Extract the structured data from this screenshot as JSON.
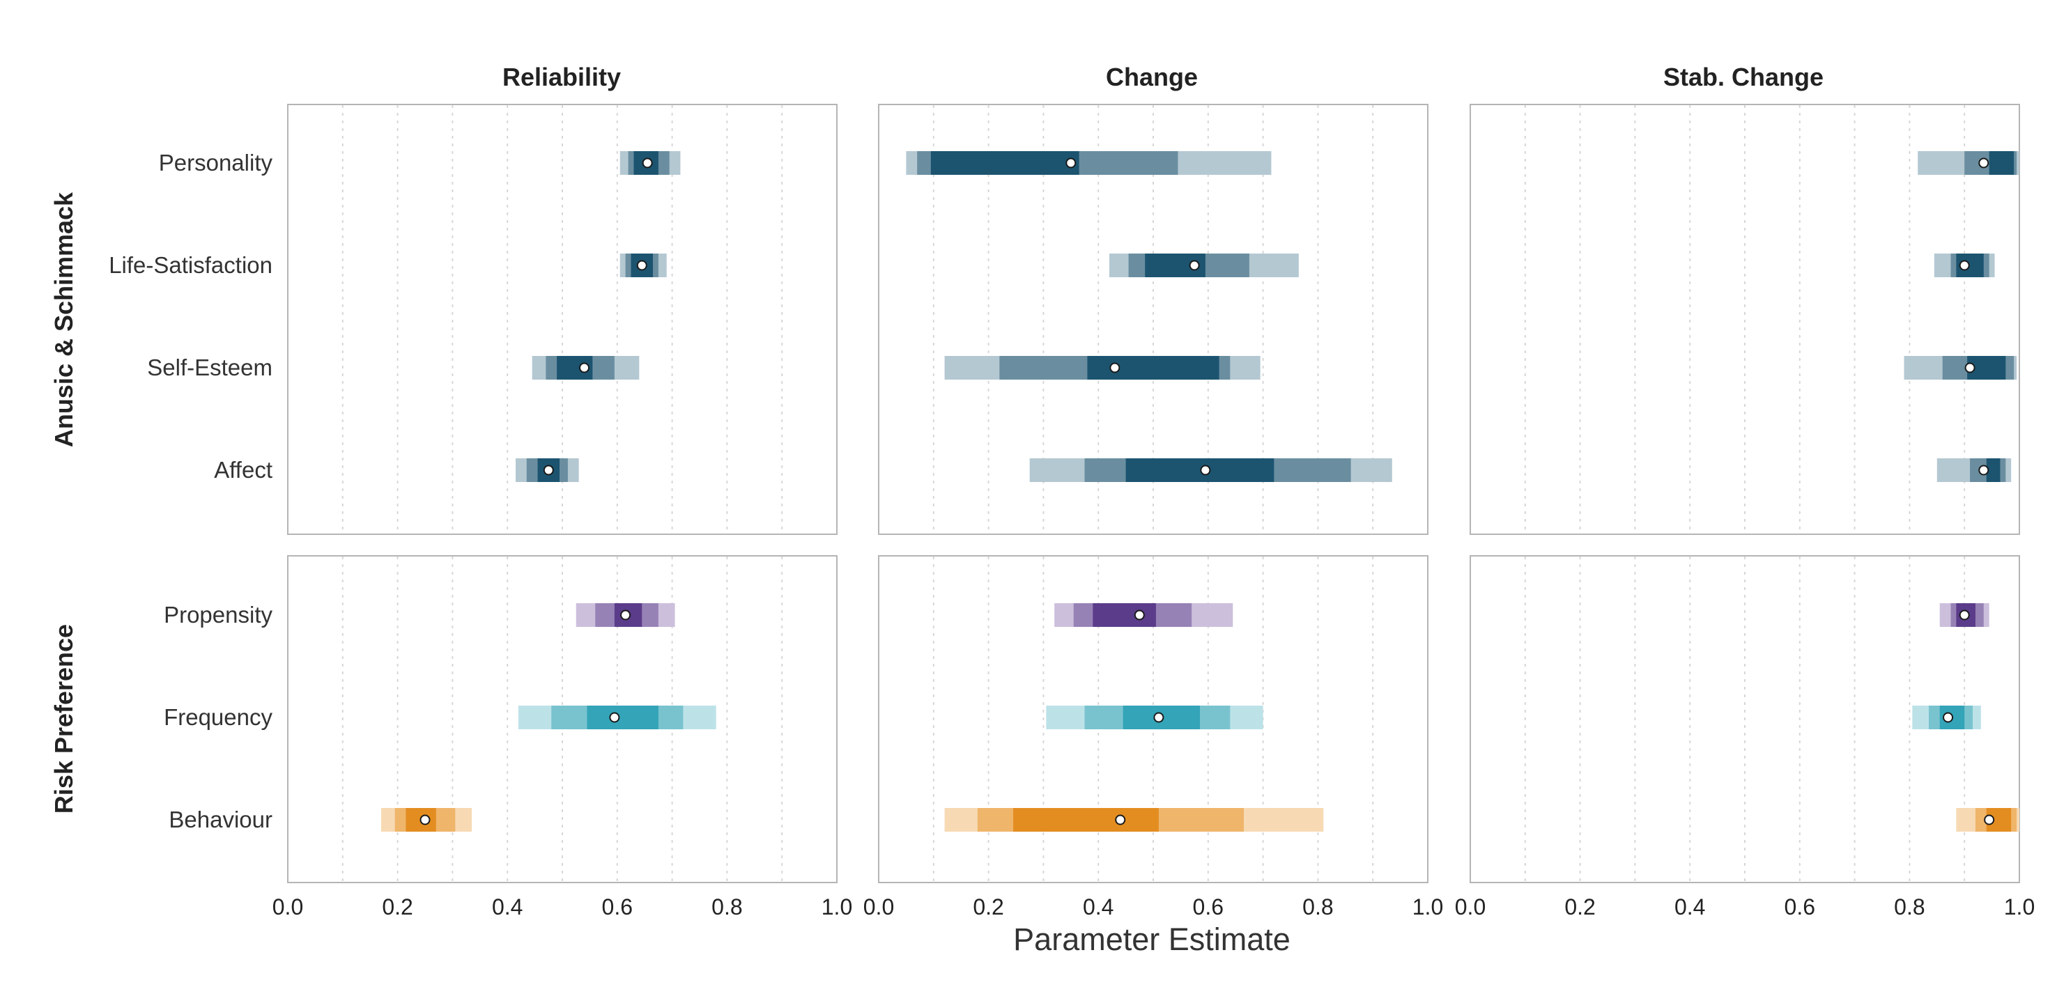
{
  "chart_data": {
    "type": "interval",
    "description_levels": [
      "outer",
      "middle",
      "inner"
    ],
    "xlabel": "Parameter Estimate",
    "xlim": [
      0,
      1
    ],
    "x_ticks": [
      "0.0",
      "0.2",
      "0.4",
      "0.6",
      "0.8",
      "1.0"
    ],
    "grid": "vertical dotted lines every 0.1",
    "columns": [
      "Reliability",
      "Change",
      "Stab. Change"
    ],
    "rows": [
      {
        "title": "Anusic & Schimmack",
        "categories": [
          {
            "label": "Personality",
            "color_dark": "#1c5470",
            "color_mid": "#6a8ea0",
            "color_light": "#b4c8d2",
            "values": {
              "Reliability": {
                "point": 0.655,
                "inner": [
                  0.63,
                  0.675
                ],
                "middle": [
                  0.62,
                  0.695
                ],
                "outer": [
                  0.605,
                  0.715
                ]
              },
              "Change": {
                "point": 0.35,
                "inner": [
                  0.095,
                  0.365
                ],
                "middle": [
                  0.07,
                  0.545
                ],
                "outer": [
                  0.05,
                  0.715
                ]
              },
              "Stab. Change": {
                "point": 0.935,
                "inner": [
                  0.945,
                  0.99
                ],
                "middle": [
                  0.9,
                  0.995
                ],
                "outer": [
                  0.815,
                  1.0
                ]
              }
            }
          },
          {
            "label": "Life-Satisfaction",
            "color_dark": "#1c5470",
            "color_mid": "#6a8ea0",
            "color_light": "#b4c8d2",
            "values": {
              "Reliability": {
                "point": 0.645,
                "inner": [
                  0.625,
                  0.665
                ],
                "middle": [
                  0.615,
                  0.675
                ],
                "outer": [
                  0.605,
                  0.69
                ]
              },
              "Change": {
                "point": 0.575,
                "inner": [
                  0.485,
                  0.595
                ],
                "middle": [
                  0.455,
                  0.675
                ],
                "outer": [
                  0.42,
                  0.765
                ]
              },
              "Stab. Change": {
                "point": 0.9,
                "inner": [
                  0.885,
                  0.935
                ],
                "middle": [
                  0.875,
                  0.945
                ],
                "outer": [
                  0.845,
                  0.955
                ]
              }
            }
          },
          {
            "label": "Self-Esteem",
            "color_dark": "#1c5470",
            "color_mid": "#6a8ea0",
            "color_light": "#b4c8d2",
            "values": {
              "Reliability": {
                "point": 0.54,
                "inner": [
                  0.49,
                  0.555
                ],
                "middle": [
                  0.47,
                  0.595
                ],
                "outer": [
                  0.445,
                  0.64
                ]
              },
              "Change": {
                "point": 0.43,
                "inner": [
                  0.38,
                  0.62
                ],
                "middle": [
                  0.22,
                  0.64
                ],
                "outer": [
                  0.12,
                  0.695
                ]
              },
              "Stab. Change": {
                "point": 0.91,
                "inner": [
                  0.905,
                  0.975
                ],
                "middle": [
                  0.86,
                  0.99
                ],
                "outer": [
                  0.79,
                  0.995
                ]
              }
            }
          },
          {
            "label": "Affect",
            "color_dark": "#1c5470",
            "color_mid": "#6a8ea0",
            "color_light": "#b4c8d2",
            "values": {
              "Reliability": {
                "point": 0.475,
                "inner": [
                  0.455,
                  0.495
                ],
                "middle": [
                  0.435,
                  0.51
                ],
                "outer": [
                  0.415,
                  0.53
                ]
              },
              "Change": {
                "point": 0.595,
                "inner": [
                  0.45,
                  0.72
                ],
                "middle": [
                  0.375,
                  0.86
                ],
                "outer": [
                  0.275,
                  0.935
                ]
              },
              "Stab. Change": {
                "point": 0.935,
                "inner": [
                  0.94,
                  0.965
                ],
                "middle": [
                  0.91,
                  0.975
                ],
                "outer": [
                  0.85,
                  0.985
                ]
              }
            }
          }
        ]
      },
      {
        "title": "Risk Preference",
        "categories": [
          {
            "label": "Propensity",
            "color_dark": "#5b3c8a",
            "color_mid": "#9782b6",
            "color_light": "#ccbfdc",
            "values": {
              "Reliability": {
                "point": 0.615,
                "inner": [
                  0.595,
                  0.645
                ],
                "middle": [
                  0.56,
                  0.675
                ],
                "outer": [
                  0.525,
                  0.705
                ]
              },
              "Change": {
                "point": 0.475,
                "inner": [
                  0.39,
                  0.505
                ],
                "middle": [
                  0.355,
                  0.57
                ],
                "outer": [
                  0.32,
                  0.645
                ]
              },
              "Stab. Change": {
                "point": 0.9,
                "inner": [
                  0.885,
                  0.92
                ],
                "middle": [
                  0.875,
                  0.935
                ],
                "outer": [
                  0.855,
                  0.945
                ]
              }
            }
          },
          {
            "label": "Frequency",
            "color_dark": "#34a4b8",
            "color_mid": "#79c3cf",
            "color_light": "#bce2e8",
            "values": {
              "Reliability": {
                "point": 0.595,
                "inner": [
                  0.545,
                  0.675
                ],
                "middle": [
                  0.48,
                  0.72
                ],
                "outer": [
                  0.42,
                  0.78
                ]
              },
              "Change": {
                "point": 0.51,
                "inner": [
                  0.445,
                  0.585
                ],
                "middle": [
                  0.375,
                  0.64
                ],
                "outer": [
                  0.305,
                  0.7
                ]
              },
              "Stab. Change": {
                "point": 0.87,
                "inner": [
                  0.855,
                  0.9
                ],
                "middle": [
                  0.835,
                  0.915
                ],
                "outer": [
                  0.805,
                  0.93
                ]
              }
            }
          },
          {
            "label": "Behaviour",
            "color_dark": "#e38d21",
            "color_mid": "#efb56b",
            "color_light": "#f7dab4",
            "values": {
              "Reliability": {
                "point": 0.25,
                "inner": [
                  0.215,
                  0.27
                ],
                "middle": [
                  0.195,
                  0.305
                ],
                "outer": [
                  0.17,
                  0.335
                ]
              },
              "Change": {
                "point": 0.44,
                "inner": [
                  0.245,
                  0.51
                ],
                "middle": [
                  0.18,
                  0.665
                ],
                "outer": [
                  0.12,
                  0.81
                ]
              },
              "Stab. Change": {
                "point": 0.945,
                "inner": [
                  0.94,
                  0.985
                ],
                "middle": [
                  0.92,
                  0.995
                ],
                "outer": [
                  0.885,
                  1.0
                ]
              }
            }
          }
        ]
      }
    ]
  }
}
